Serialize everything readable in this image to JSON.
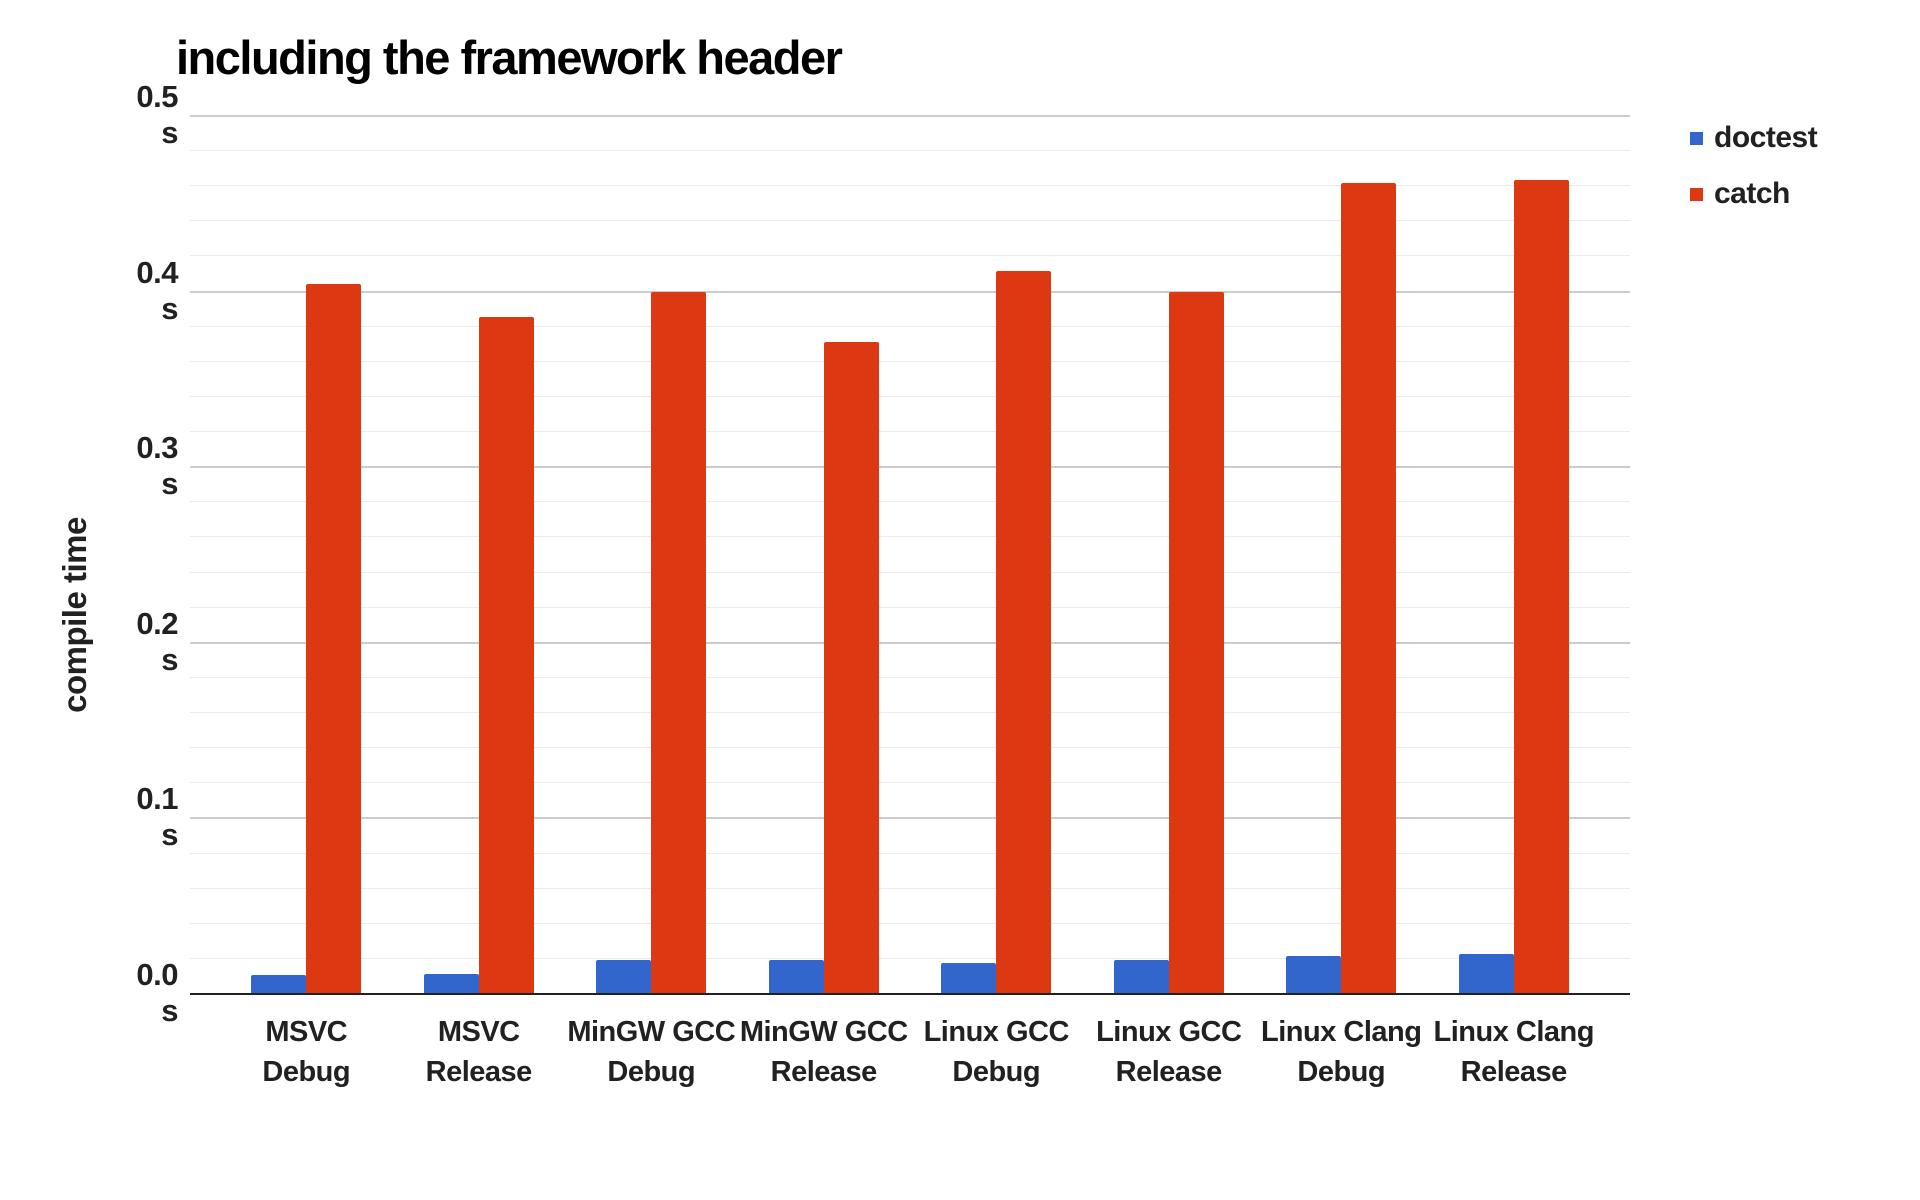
{
  "chart_data": {
    "type": "bar",
    "title": "including the framework header",
    "ylabel": "compile time",
    "unit": "s",
    "ylim": [
      0,
      0.5
    ],
    "y_major_step": 0.1,
    "y_minor_step": 0.02,
    "grid": {
      "major_color": "#cccccc",
      "minor_color": "#ebebeb",
      "baseline_color": "#212121"
    },
    "text_color": "#212121",
    "title_color": "#000000",
    "legend_position": "right",
    "yticks": [
      {
        "value": 0.5,
        "line1": "0.5",
        "line2": "s"
      },
      {
        "value": 0.4,
        "line1": "0.4",
        "line2": "s"
      },
      {
        "value": 0.3,
        "line1": "0.3",
        "line2": "s"
      },
      {
        "value": 0.2,
        "line1": "0.2",
        "line2": "s"
      },
      {
        "value": 0.1,
        "line1": "0.1",
        "line2": "s"
      },
      {
        "value": 0.0,
        "line1": "0.0",
        "line2": "s"
      }
    ],
    "categories": [
      {
        "id": "msvc-debug",
        "line1": "MSVC",
        "line2": "Debug"
      },
      {
        "id": "msvc-release",
        "line1": "MSVC",
        "line2": "Release"
      },
      {
        "id": "mingw-gcc-debug",
        "line1": "MinGW GCC",
        "line2": "Debug"
      },
      {
        "id": "mingw-gcc-release",
        "line1": "MinGW GCC",
        "line2": "Release"
      },
      {
        "id": "linux-gcc-debug",
        "line1": "Linux GCC",
        "line2": "Debug"
      },
      {
        "id": "linux-gcc-release",
        "line1": "Linux GCC",
        "line2": "Release"
      },
      {
        "id": "linux-clang-debug",
        "line1": "Linux Clang",
        "line2": "Debug"
      },
      {
        "id": "linux-clang-release",
        "line1": "Linux Clang",
        "line2": "Release"
      }
    ],
    "series": [
      {
        "name": "doctest",
        "color": "#3366cc",
        "values": [
          0.01,
          0.011,
          0.019,
          0.019,
          0.017,
          0.019,
          0.021,
          0.022
        ]
      },
      {
        "name": "catch",
        "color": "#dc3912",
        "values": [
          0.404,
          0.385,
          0.399,
          0.371,
          0.411,
          0.399,
          0.461,
          0.463
        ]
      }
    ]
  }
}
